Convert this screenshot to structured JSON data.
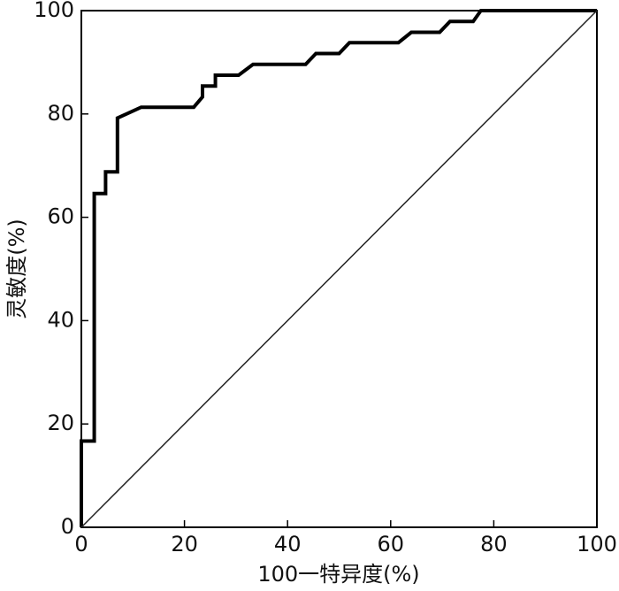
{
  "chart_data": {
    "type": "line",
    "x_label": "100一特异度(%)",
    "y_label": "灵敏度(%)",
    "xlim": [
      0,
      100
    ],
    "ylim": [
      0,
      100
    ],
    "xticks": [
      0,
      20,
      40,
      60,
      80,
      100
    ],
    "yticks": [
      0,
      20,
      40,
      60,
      80,
      100
    ],
    "series": [
      {
        "color": "#000000",
        "width": 4,
        "x": [
          0,
          0,
          2.5,
          2.5,
          4.7,
          4.7,
          7,
          7,
          11.6,
          21.8,
          23.5,
          23.5,
          26,
          26,
          30.5,
          33.3,
          43.5,
          45.5,
          50,
          52,
          61.5,
          64,
          69.5,
          71.5,
          76,
          77.5,
          100
        ],
        "values": [
          0,
          16.7,
          16.7,
          64.6,
          64.6,
          68.8,
          68.8,
          79.2,
          81.3,
          81.3,
          83.3,
          85.4,
          85.4,
          87.5,
          87.5,
          89.6,
          89.6,
          91.7,
          91.7,
          93.8,
          93.8,
          95.8,
          95.8,
          97.9,
          97.9,
          100,
          100
        ]
      },
      {
        "color": "#222222",
        "width": 1.5,
        "x": [
          0,
          100
        ],
        "values": [
          0,
          100
        ]
      }
    ]
  }
}
